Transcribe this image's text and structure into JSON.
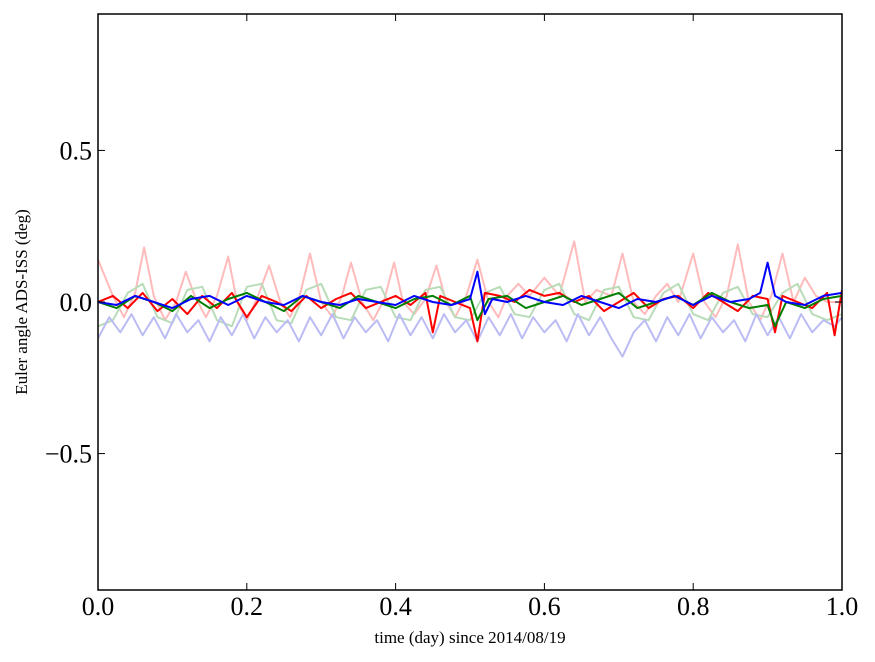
{
  "chart_data": {
    "type": "line",
    "title": "",
    "xlabel": "time (day) since 2014/08/19",
    "ylabel": "Euler angle ADS-ISS (deg)",
    "xlim": [
      0.0,
      1.0
    ],
    "ylim": [
      -0.95,
      0.95
    ],
    "x_ticks": [
      0.0,
      0.2,
      0.4,
      0.6,
      0.8,
      1.0
    ],
    "x_tick_labels": [
      "0.0",
      "0.2",
      "0.4",
      "0.6",
      "0.8",
      "1.0"
    ],
    "y_ticks": [
      -0.5,
      0.0,
      0.5
    ],
    "y_tick_labels": [
      "−0.5",
      "0.0",
      "0.5"
    ],
    "grid": false,
    "legend": "none",
    "series": [
      {
        "color": "#ffbbbb",
        "x": [
          0.0,
          0.02,
          0.035,
          0.05,
          0.062,
          0.075,
          0.09,
          0.105,
          0.118,
          0.13,
          0.145,
          0.16,
          0.175,
          0.187,
          0.2,
          0.215,
          0.23,
          0.245,
          0.258,
          0.27,
          0.285,
          0.3,
          0.315,
          0.328,
          0.34,
          0.355,
          0.37,
          0.385,
          0.398,
          0.41,
          0.425,
          0.44,
          0.455,
          0.468,
          0.48,
          0.495,
          0.51,
          0.525,
          0.538,
          0.55,
          0.565,
          0.58,
          0.6,
          0.62,
          0.64,
          0.655,
          0.67,
          0.69,
          0.705,
          0.72,
          0.735,
          0.75,
          0.765,
          0.78,
          0.8,
          0.815,
          0.83,
          0.845,
          0.86,
          0.875,
          0.89,
          0.905,
          0.92,
          0.935,
          0.95,
          0.965,
          0.98,
          1.0
        ],
        "y": [
          0.14,
          0.02,
          -0.05,
          0.03,
          0.18,
          0.02,
          -0.06,
          0.0,
          0.1,
          0.02,
          -0.05,
          0.02,
          0.15,
          0.0,
          -0.06,
          0.02,
          0.12,
          0.0,
          -0.05,
          0.01,
          0.16,
          0.0,
          -0.05,
          0.02,
          0.13,
          0.0,
          -0.06,
          0.01,
          0.13,
          0.0,
          -0.04,
          0.01,
          0.12,
          0.0,
          -0.05,
          0.02,
          0.14,
          0.0,
          -0.05,
          0.02,
          0.06,
          0.02,
          0.08,
          0.02,
          0.2,
          0.0,
          0.04,
          0.02,
          0.16,
          0.0,
          -0.04,
          0.02,
          0.06,
          0.0,
          0.16,
          0.0,
          -0.05,
          0.02,
          0.19,
          0.0,
          -0.06,
          0.02,
          0.16,
          0.0,
          0.08,
          0.02,
          0.0,
          0.0
        ]
      },
      {
        "color": "#b8dcb8",
        "x": [
          0.0,
          0.02,
          0.04,
          0.06,
          0.08,
          0.1,
          0.12,
          0.14,
          0.16,
          0.18,
          0.2,
          0.22,
          0.24,
          0.26,
          0.28,
          0.3,
          0.32,
          0.34,
          0.36,
          0.38,
          0.4,
          0.42,
          0.44,
          0.46,
          0.48,
          0.5,
          0.52,
          0.54,
          0.56,
          0.58,
          0.6,
          0.62,
          0.64,
          0.66,
          0.68,
          0.7,
          0.72,
          0.74,
          0.76,
          0.78,
          0.8,
          0.82,
          0.84,
          0.86,
          0.88,
          0.9,
          0.92,
          0.94,
          0.96,
          0.98,
          1.0
        ],
        "y": [
          -0.08,
          -0.06,
          0.03,
          0.06,
          -0.05,
          -0.07,
          0.04,
          0.05,
          -0.06,
          -0.08,
          0.05,
          0.06,
          -0.06,
          -0.07,
          0.04,
          0.06,
          -0.05,
          -0.06,
          0.04,
          0.05,
          -0.05,
          -0.06,
          0.04,
          0.05,
          -0.05,
          -0.06,
          0.03,
          0.05,
          -0.04,
          -0.05,
          0.04,
          0.06,
          -0.04,
          -0.06,
          0.04,
          0.05,
          -0.05,
          -0.06,
          0.03,
          0.06,
          -0.04,
          -0.06,
          0.03,
          0.05,
          -0.04,
          -0.05,
          0.03,
          0.06,
          -0.04,
          -0.06,
          -0.04
        ]
      },
      {
        "color": "#bcbcf4",
        "x": [
          0.0,
          0.015,
          0.03,
          0.045,
          0.06,
          0.075,
          0.09,
          0.105,
          0.12,
          0.135,
          0.15,
          0.165,
          0.18,
          0.195,
          0.21,
          0.225,
          0.24,
          0.255,
          0.27,
          0.285,
          0.3,
          0.315,
          0.33,
          0.345,
          0.36,
          0.375,
          0.39,
          0.405,
          0.42,
          0.435,
          0.45,
          0.465,
          0.48,
          0.495,
          0.51,
          0.525,
          0.54,
          0.555,
          0.57,
          0.585,
          0.6,
          0.615,
          0.63,
          0.645,
          0.66,
          0.675,
          0.69,
          0.705,
          0.72,
          0.735,
          0.75,
          0.765,
          0.78,
          0.795,
          0.81,
          0.825,
          0.84,
          0.855,
          0.87,
          0.885,
          0.9,
          0.915,
          0.93,
          0.945,
          0.96,
          0.975,
          0.99,
          1.0
        ],
        "y": [
          -0.12,
          -0.05,
          -0.1,
          -0.04,
          -0.11,
          -0.05,
          -0.12,
          -0.04,
          -0.1,
          -0.06,
          -0.13,
          -0.05,
          -0.11,
          -0.04,
          -0.12,
          -0.05,
          -0.1,
          -0.06,
          -0.13,
          -0.05,
          -0.11,
          -0.04,
          -0.12,
          -0.05,
          -0.1,
          -0.06,
          -0.13,
          -0.04,
          -0.11,
          -0.05,
          -0.12,
          -0.04,
          -0.1,
          -0.06,
          -0.13,
          -0.05,
          -0.11,
          -0.04,
          -0.12,
          -0.05,
          -0.1,
          -0.06,
          -0.13,
          -0.04,
          -0.11,
          -0.05,
          -0.12,
          -0.18,
          -0.1,
          -0.06,
          -0.13,
          -0.05,
          -0.11,
          -0.04,
          -0.12,
          -0.05,
          -0.1,
          -0.06,
          -0.13,
          -0.04,
          -0.11,
          -0.05,
          -0.12,
          -0.04,
          -0.1,
          -0.06,
          -0.08,
          -0.05
        ]
      },
      {
        "color": "#ff0000",
        "x": [
          0.0,
          0.02,
          0.04,
          0.06,
          0.08,
          0.1,
          0.12,
          0.14,
          0.16,
          0.18,
          0.2,
          0.22,
          0.24,
          0.26,
          0.28,
          0.3,
          0.32,
          0.34,
          0.36,
          0.38,
          0.4,
          0.42,
          0.44,
          0.45,
          0.46,
          0.48,
          0.5,
          0.51,
          0.52,
          0.54,
          0.56,
          0.58,
          0.6,
          0.62,
          0.64,
          0.66,
          0.68,
          0.7,
          0.72,
          0.74,
          0.76,
          0.78,
          0.8,
          0.82,
          0.84,
          0.86,
          0.88,
          0.9,
          0.91,
          0.92,
          0.94,
          0.96,
          0.98,
          0.99,
          1.0
        ],
        "y": [
          0.0,
          0.02,
          -0.02,
          0.03,
          -0.03,
          0.01,
          -0.04,
          0.02,
          -0.02,
          0.03,
          -0.05,
          0.02,
          0.0,
          -0.03,
          0.02,
          -0.02,
          0.01,
          0.03,
          -0.02,
          0.0,
          0.02,
          -0.01,
          0.03,
          -0.1,
          0.02,
          0.0,
          -0.02,
          -0.13,
          0.03,
          0.02,
          0.0,
          0.04,
          0.02,
          0.03,
          0.0,
          0.02,
          -0.03,
          0.0,
          0.03,
          -0.02,
          0.01,
          0.02,
          -0.02,
          0.03,
          0.0,
          -0.03,
          0.02,
          0.01,
          -0.1,
          0.02,
          0.0,
          -0.02,
          0.03,
          -0.11,
          0.04
        ]
      },
      {
        "color": "#007f00",
        "x": [
          0.0,
          0.025,
          0.05,
          0.075,
          0.1,
          0.125,
          0.15,
          0.175,
          0.2,
          0.225,
          0.25,
          0.275,
          0.3,
          0.325,
          0.35,
          0.375,
          0.4,
          0.425,
          0.45,
          0.475,
          0.5,
          0.51,
          0.525,
          0.55,
          0.575,
          0.6,
          0.625,
          0.65,
          0.675,
          0.7,
          0.725,
          0.75,
          0.775,
          0.8,
          0.825,
          0.85,
          0.875,
          0.9,
          0.91,
          0.925,
          0.95,
          0.975,
          1.0
        ],
        "y": [
          0.0,
          -0.02,
          0.02,
          0.0,
          -0.03,
          0.02,
          -0.02,
          0.01,
          0.03,
          0.0,
          -0.03,
          0.02,
          0.0,
          -0.02,
          0.02,
          0.0,
          -0.02,
          0.01,
          0.02,
          -0.01,
          0.02,
          -0.06,
          0.01,
          0.02,
          -0.02,
          0.0,
          0.02,
          -0.01,
          0.01,
          0.03,
          -0.02,
          0.0,
          0.02,
          -0.01,
          0.03,
          0.0,
          -0.02,
          -0.01,
          -0.08,
          0.0,
          -0.02,
          0.01,
          0.02
        ]
      },
      {
        "color": "#0000ff",
        "x": [
          0.0,
          0.025,
          0.05,
          0.075,
          0.1,
          0.125,
          0.15,
          0.175,
          0.2,
          0.225,
          0.25,
          0.275,
          0.3,
          0.325,
          0.35,
          0.375,
          0.4,
          0.425,
          0.45,
          0.475,
          0.5,
          0.51,
          0.52,
          0.53,
          0.55,
          0.575,
          0.6,
          0.625,
          0.65,
          0.675,
          0.7,
          0.725,
          0.75,
          0.775,
          0.8,
          0.825,
          0.85,
          0.875,
          0.89,
          0.9,
          0.91,
          0.925,
          0.95,
          0.975,
          1.0
        ],
        "y": [
          0.0,
          -0.01,
          0.02,
          0.0,
          -0.02,
          0.01,
          0.02,
          -0.01,
          0.02,
          0.0,
          -0.01,
          0.02,
          0.0,
          -0.01,
          0.01,
          0.0,
          -0.01,
          0.02,
          0.0,
          -0.01,
          0.01,
          0.1,
          -0.04,
          0.01,
          0.0,
          0.02,
          0.0,
          -0.01,
          0.02,
          0.0,
          -0.02,
          0.01,
          0.0,
          0.02,
          -0.01,
          0.02,
          0.0,
          0.01,
          0.03,
          0.13,
          0.02,
          0.0,
          -0.01,
          0.02,
          0.03
        ]
      }
    ]
  }
}
